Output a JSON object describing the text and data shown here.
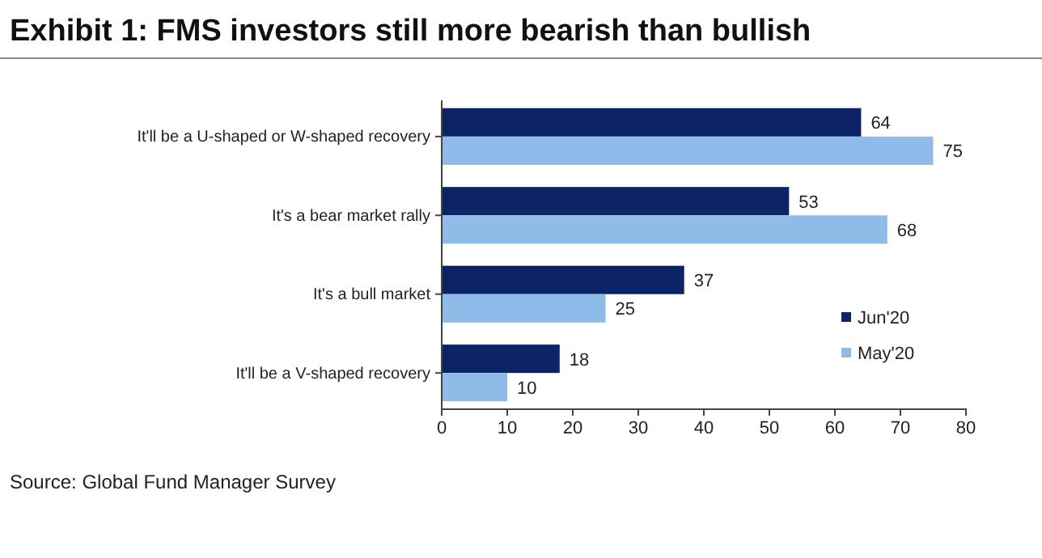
{
  "chart_data": {
    "type": "bar",
    "orientation": "horizontal",
    "title": "Exhibit 1: FMS investors still more bearish than bullish",
    "categories": [
      "It'll be a U-shaped or W-shaped recovery",
      "It's a bear market rally",
      "It's a bull market",
      "It'll be a V-shaped recovery"
    ],
    "series": [
      {
        "name": "Jun'20",
        "color": "#0c2466",
        "values": [
          64,
          53,
          37,
          18
        ]
      },
      {
        "name": "May'20",
        "color": "#8fbbe8",
        "values": [
          75,
          68,
          25,
          10
        ]
      }
    ],
    "xlim": [
      0,
      80
    ],
    "xticks": [
      0,
      10,
      20,
      30,
      40,
      50,
      60,
      70,
      80
    ],
    "data_labels": true,
    "legend": "right",
    "grid": false,
    "annotations": [
      "Source: Global Fund Manager Survey"
    ]
  }
}
